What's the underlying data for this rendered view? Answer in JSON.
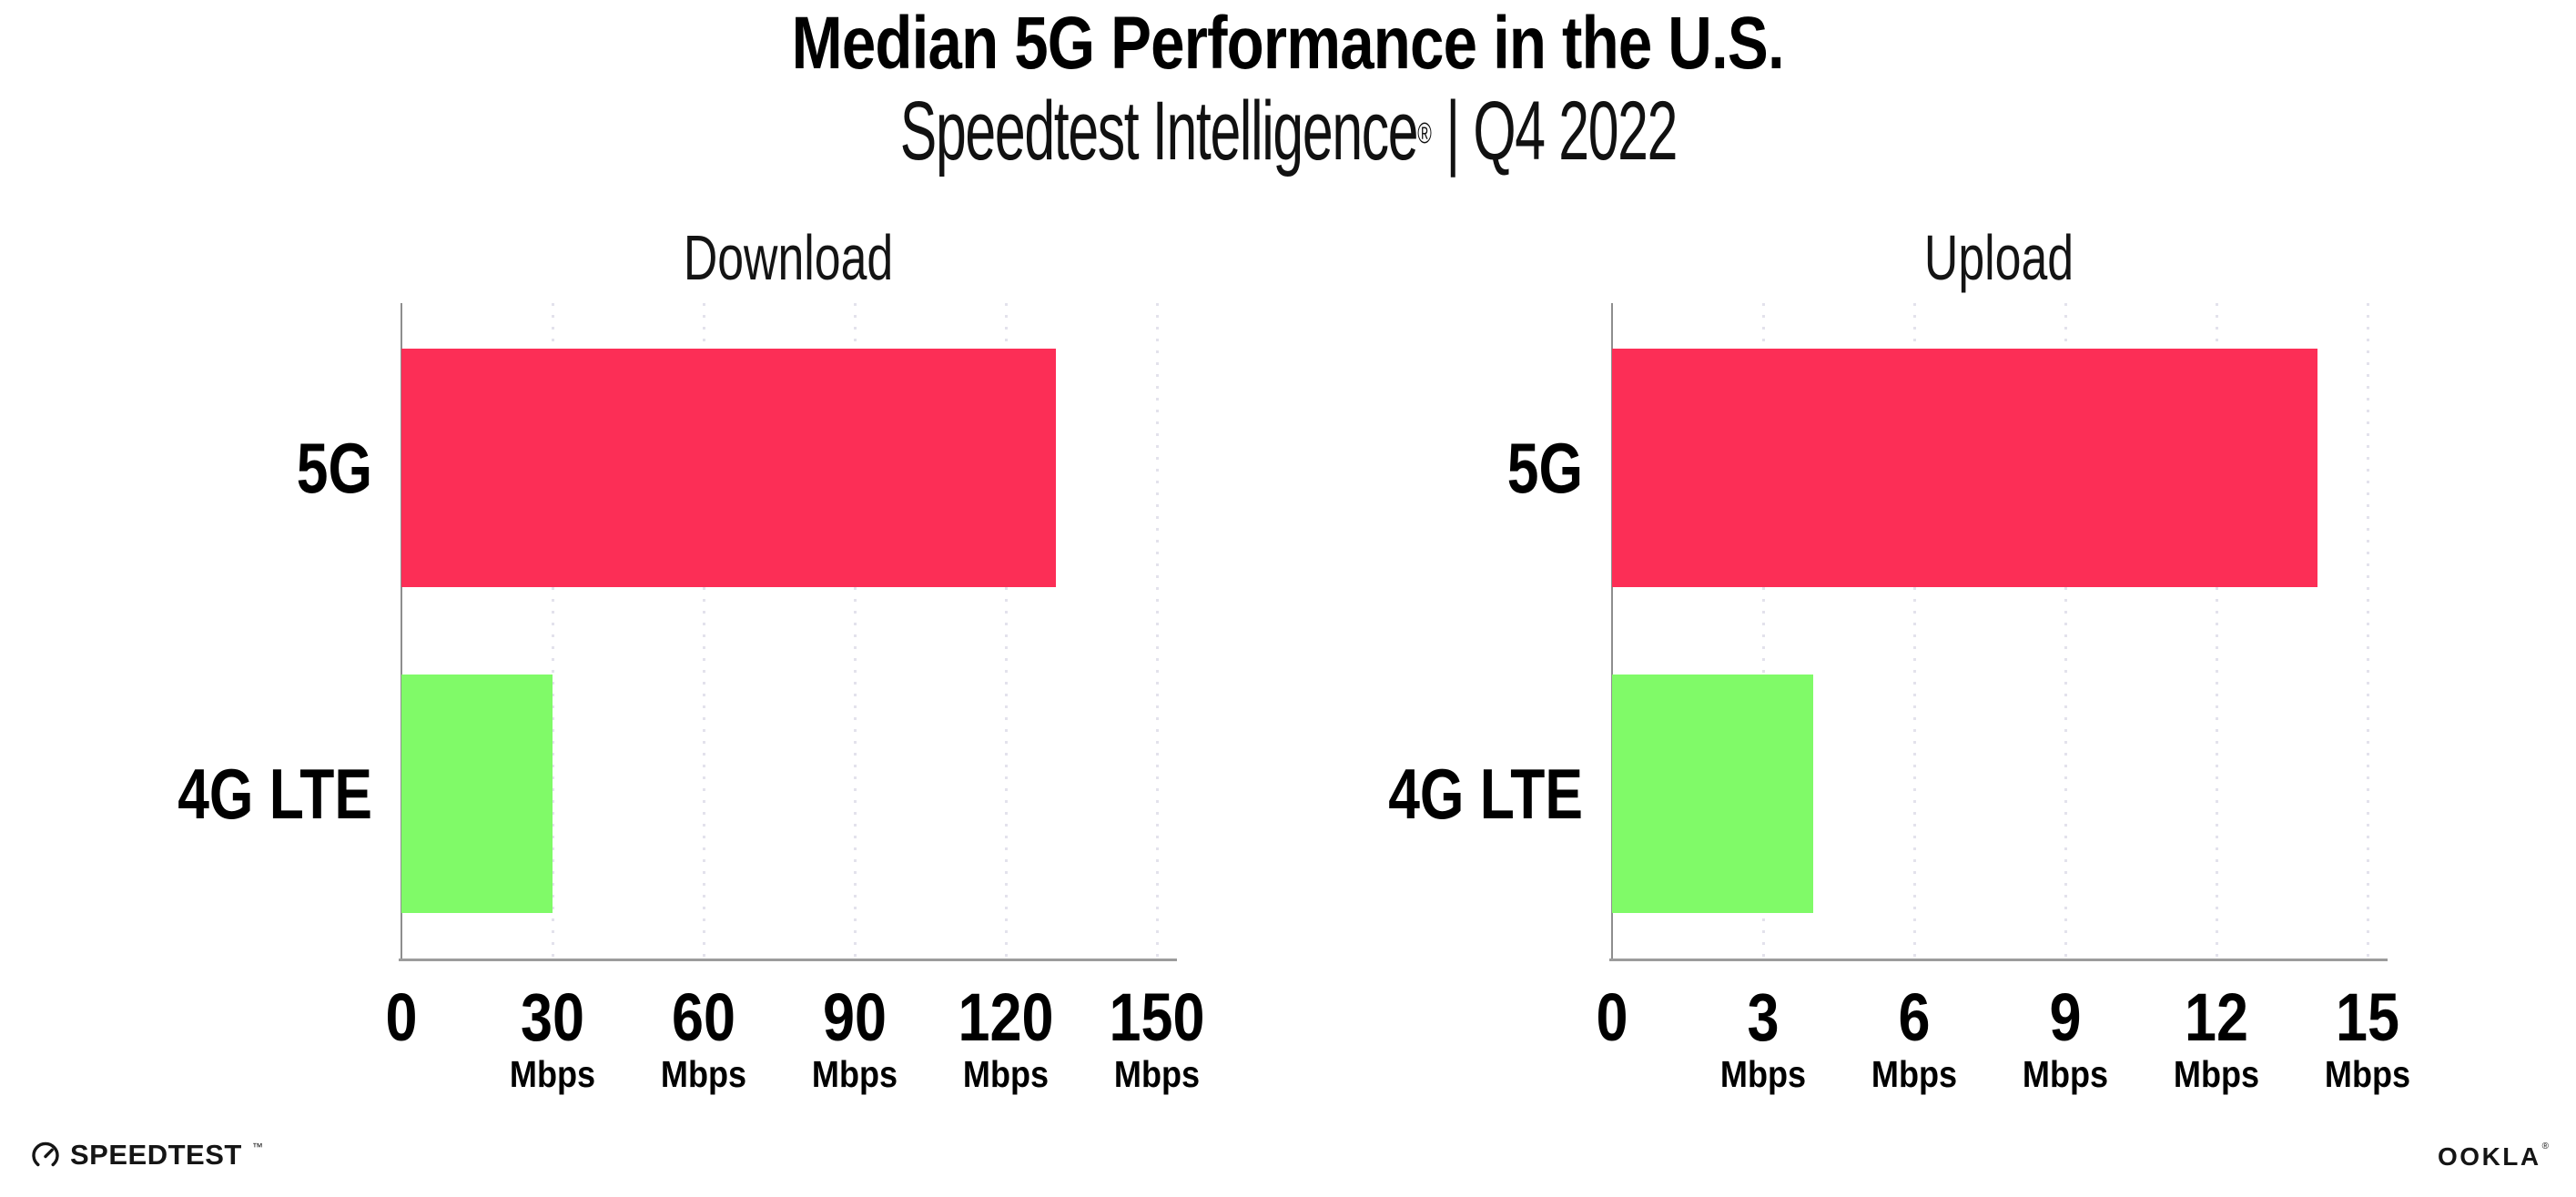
{
  "header": {
    "title": "Median 5G Performance in the U.S.",
    "subtitle_product": "Speedtest Intelligence",
    "subtitle_reg": "®",
    "subtitle_rest": " | Q4 2022"
  },
  "footer": {
    "speedtest_wordmark": "SPEEDTEST",
    "speedtest_tm": "™",
    "ookla_wordmark": "OOKLA",
    "ookla_reg": "®"
  },
  "colors": {
    "bar_5g": "#FC2E56",
    "bar_4g_lte": "#80FA68",
    "axis": "#9C9C9C",
    "grid": "#E3E2EC",
    "text": "#0D0D0D"
  },
  "chart_data": [
    {
      "type": "bar",
      "orientation": "horizontal",
      "title": "Download",
      "categories": [
        "5G",
        "4G LTE"
      ],
      "values": [
        130,
        30
      ],
      "unit": "Mbps",
      "xticks": [
        0,
        30,
        60,
        90,
        120,
        150
      ],
      "tick_unit_label": "Mbps",
      "xlim": [
        0,
        150
      ],
      "grid": "dotted-vertical",
      "bar_colors": [
        "#FC2E56",
        "#80FA68"
      ]
    },
    {
      "type": "bar",
      "orientation": "horizontal",
      "title": "Upload",
      "categories": [
        "5G",
        "4G LTE"
      ],
      "values": [
        14,
        4
      ],
      "unit": "Mbps",
      "xticks": [
        0,
        3,
        6,
        9,
        12,
        15
      ],
      "tick_unit_label": "Mbps",
      "xlim": [
        0,
        15
      ],
      "grid": "dotted-vertical",
      "bar_colors": [
        "#FC2E56",
        "#80FA68"
      ]
    }
  ]
}
